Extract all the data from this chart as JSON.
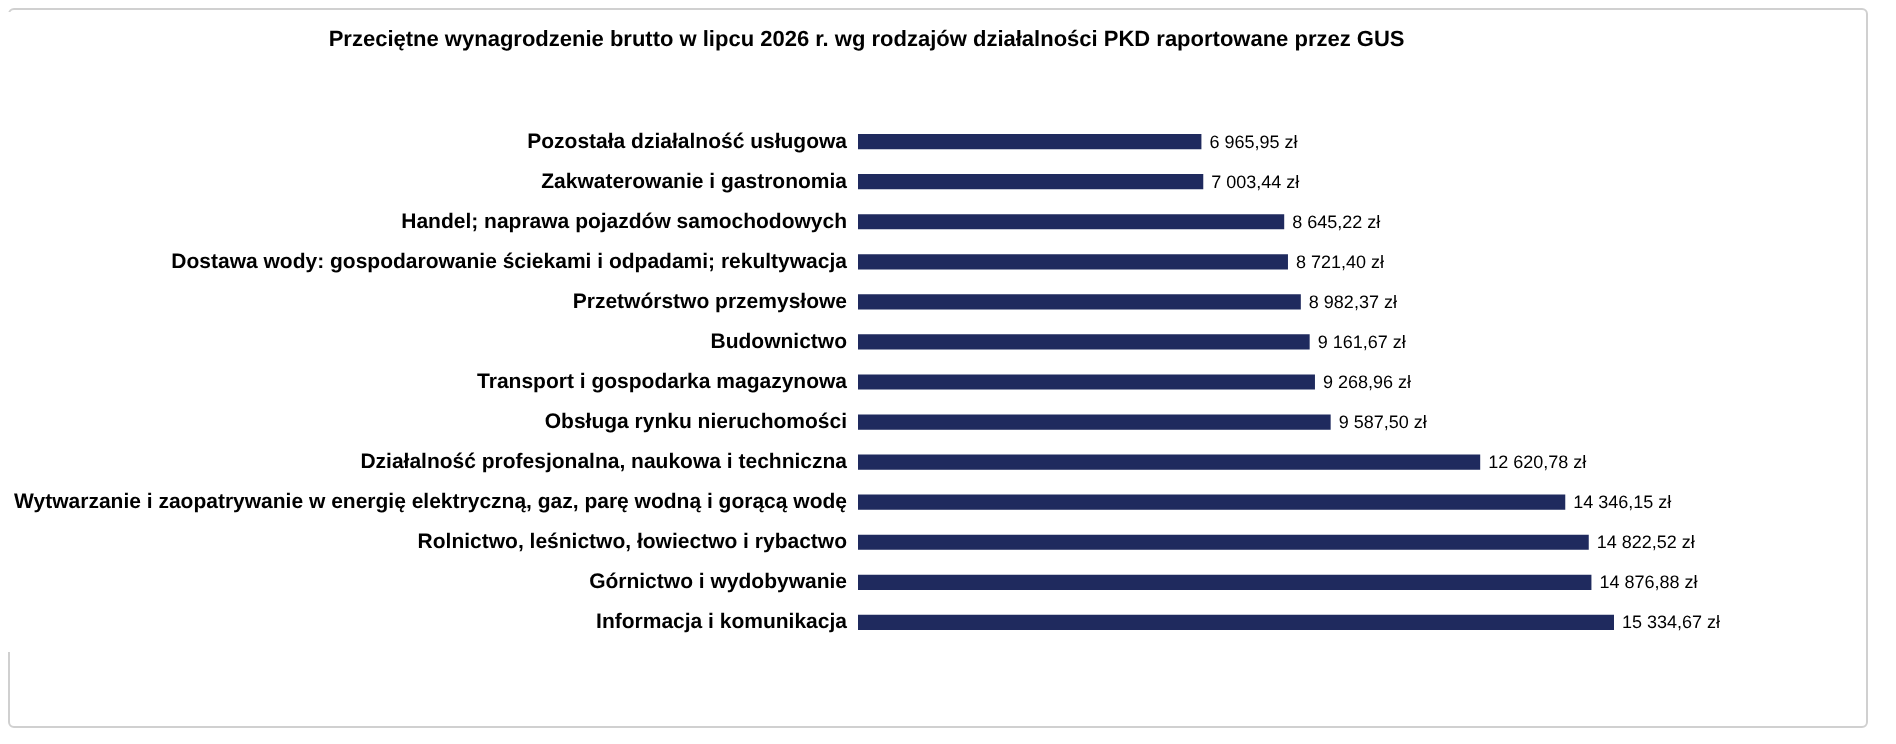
{
  "chart_data": {
    "type": "bar",
    "orientation": "horizontal",
    "title": "Przeciętne wynagrodzenie brutto w  lipcu 2026 r. wg rodzajów działalności PKD raportowane przez GUS",
    "categories": [
      "Pozostała działalność usługowa",
      "Zakwaterowanie i gastronomia",
      "Handel; naprawa pojazdów samochodowych",
      "Dostawa wody: gospodarowanie ściekami i odpadami; rekultywacja",
      "Przetwórstwo przemysłowe",
      "Budownictwo",
      "Transport i gospodarka magazynowa",
      "Obsługa rynku nieruchomości",
      "Działalność profesjonalna, naukowa i techniczna",
      "Wytwarzanie i zaopatrywanie w energię elektryczną, gaz, parę wodną i gorącą wodę",
      "Rolnictwo, leśnictwo, łowiectwo i rybactwo",
      "Górnictwo i wydobywanie",
      "Informacja i komunikacja"
    ],
    "values": [
      6965.95,
      7003.44,
      8645.22,
      8721.4,
      8982.37,
      9161.67,
      9268.96,
      9587.5,
      12620.78,
      14346.15,
      14822.52,
      14876.88,
      15334.67
    ],
    "value_labels": [
      "6 965,95 zł",
      "7 003,44 zł",
      "8 645,22 zł",
      "8 721,40 zł",
      "8 982,37 zł",
      "9 161,67 zł",
      "9 268,96 zł",
      "9 587,50 zł",
      "12 620,78 zł",
      "14 346,15 zł",
      "14 822,52 zł",
      "14 876,88 zł",
      "15 334,67 zł"
    ],
    "color": "#1f2a5e"
  }
}
